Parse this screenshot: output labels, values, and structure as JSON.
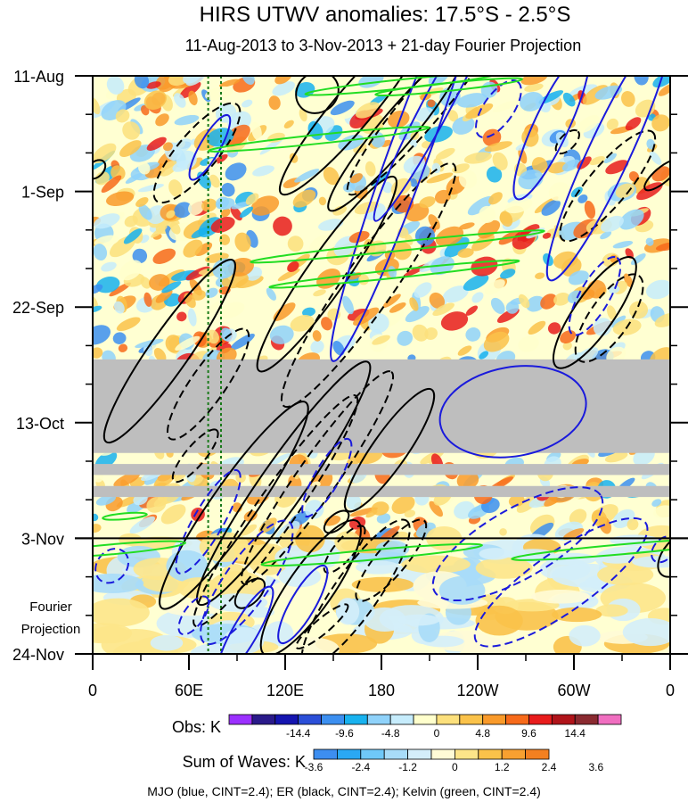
{
  "chart_data": {
    "type": "heatmap",
    "title": "HIRS UTWV anomalies: 17.5°S - 2.5°S",
    "subtitle": "11-Aug-2013 to 3-Nov-2013 + 21-day Fourier Projection",
    "xlabel": "",
    "ylabel": "",
    "x_ticks": [
      "0",
      "60E",
      "120E",
      "180",
      "120W",
      "60W",
      "0"
    ],
    "x_tick_values": [
      0,
      60,
      120,
      180,
      240,
      300,
      360
    ],
    "xlim": [
      0,
      360
    ],
    "y_ticks": [
      "11-Aug",
      "1-Sep",
      "22-Sep",
      "13-Oct",
      "3-Nov",
      "24-Nov"
    ],
    "y_tick_days": [
      0,
      21,
      42,
      63,
      84,
      105
    ],
    "ylim_days": [
      0,
      105
    ],
    "projection_start_day": 84,
    "projection_label": [
      "Fourier",
      "Projection"
    ],
    "missing_data_bands_days": [
      [
        51.5,
        68.5
      ],
      [
        70.5,
        72.5
      ],
      [
        74.5,
        76.5
      ]
    ],
    "reference_longitudes": [
      72,
      80
    ],
    "obs_colorbar": {
      "label": "Obs: K",
      "tick_labels": [
        "-14.4",
        "-9.6",
        "-4.8",
        "0",
        "4.8",
        "9.6",
        "14.4"
      ],
      "tick_values": [
        -14.4,
        -9.6,
        -4.8,
        0,
        4.8,
        9.6,
        14.4
      ],
      "colors": [
        "#9b30ff",
        "#2a1a8a",
        "#1515b0",
        "#2b4fd8",
        "#3c8ff0",
        "#18b2ef",
        "#8fd2fa",
        "#c6ecfc",
        "#ffffcc",
        "#fce07c",
        "#fac24a",
        "#f99a2a",
        "#f76a1a",
        "#e81c1c",
        "#b0141a",
        "#8a2a30",
        "#f06ec0"
      ]
    },
    "waves_colorbar": {
      "label": "Sum of Waves: K",
      "tick_labels": [
        "-3.6",
        "-2.4",
        "-1.2",
        "0",
        "1.2",
        "2.4",
        "3.6"
      ],
      "tick_values": [
        -3.6,
        -2.4,
        -1.2,
        0,
        1.2,
        2.4,
        3.6
      ],
      "colors": [
        "#3d8ef0",
        "#2aa8f4",
        "#6fc8f8",
        "#a8dcf8",
        "#d4eefa",
        "#fffbd6",
        "#fde589",
        "#fac24a",
        "#f8a030",
        "#f38020"
      ]
    },
    "legend": "MJO (blue, CINT=2.4); ER (black, CINT=2.4); Kelvin (green, CINT=2.4)",
    "contour_series": [
      {
        "name": "MJO",
        "color": "#1a1adc",
        "cint": 2.4
      },
      {
        "name": "ER",
        "color": "#000000",
        "cint": 2.4
      },
      {
        "name": "Kelvin",
        "color": "#22dd22",
        "cint": 2.4
      }
    ],
    "ellipses": [
      {
        "wave": "ER",
        "lon": 140,
        "day": 3,
        "rlon": 6,
        "rday": 4,
        "angle": -40,
        "dashed": false
      },
      {
        "wave": "ER",
        "lon": 65,
        "day": 14,
        "rlon": 17,
        "rday": 4,
        "angle": -50,
        "dashed": true
      },
      {
        "wave": "ER",
        "lon": 162,
        "day": 6,
        "rlon": 30,
        "rday": 4,
        "angle": -50,
        "dashed": false
      },
      {
        "wave": "ER",
        "lon": 207,
        "day": 5,
        "rlon": 32,
        "rday": 4,
        "angle": -50,
        "dashed": true
      },
      {
        "wave": "ER",
        "lon": 189,
        "day": 10,
        "rlon": 28,
        "rday": 3.5,
        "angle": -50,
        "dashed": false
      },
      {
        "wave": "ER",
        "lon": 2,
        "day": 17,
        "rlon": 3,
        "rday": 1.5,
        "angle": -45,
        "dashed": false
      },
      {
        "wave": "ER",
        "lon": 296,
        "day": 12,
        "rlon": 4,
        "rday": 1.5,
        "angle": -45,
        "dashed": true
      },
      {
        "wave": "ER",
        "lon": 321,
        "day": 20,
        "rlon": 19,
        "rday": 4,
        "angle": -50,
        "dashed": true
      },
      {
        "wave": "ER",
        "lon": 355,
        "day": 18,
        "rlon": 6,
        "rday": 1.5,
        "angle": -40,
        "dashed": false
      },
      {
        "wave": "ER",
        "lon": 146,
        "day": 36,
        "rlon": 32,
        "rday": 4,
        "angle": -55,
        "dashed": false
      },
      {
        "wave": "ER",
        "lon": 172,
        "day": 38,
        "rlon": 40,
        "rday": 5,
        "angle": -55,
        "dashed": true
      },
      {
        "wave": "ER",
        "lon": 313,
        "day": 43,
        "rlon": 18,
        "rday": 4,
        "angle": -55,
        "dashed": false
      },
      {
        "wave": "ER",
        "lon": 322,
        "day": 44,
        "rlon": 14,
        "rday": 4,
        "angle": -55,
        "dashed": true
      },
      {
        "wave": "ER",
        "lon": 48,
        "day": 50,
        "rlon": 30,
        "rday": 4,
        "angle": -55,
        "dashed": false
      },
      {
        "wave": "ER",
        "lon": 72,
        "day": 56,
        "rlon": 18,
        "rday": 3.5,
        "angle": -55,
        "dashed": true
      },
      {
        "wave": "ER",
        "lon": 119,
        "day": 74,
        "rlon": 40,
        "rday": 4.5,
        "angle": -55,
        "dashed": false
      },
      {
        "wave": "ER",
        "lon": 140,
        "day": 73,
        "rlon": 35,
        "rday": 4,
        "angle": -55,
        "dashed": true
      },
      {
        "wave": "ER",
        "lon": 88,
        "day": 78,
        "rlon": 34,
        "rday": 4.5,
        "angle": -55,
        "dashed": false
      },
      {
        "wave": "ER",
        "lon": 114,
        "day": 79,
        "rlon": 38,
        "rday": 4,
        "angle": -55,
        "dashed": true
      },
      {
        "wave": "ER",
        "lon": 185,
        "day": 68,
        "rlon": 20,
        "rday": 3.5,
        "angle": -55,
        "dashed": false
      },
      {
        "wave": "ER",
        "lon": 64,
        "day": 69,
        "rlon": 9,
        "rday": 2,
        "angle": -50,
        "dashed": true
      },
      {
        "wave": "ER",
        "lon": 152,
        "day": 81,
        "rlon": 4,
        "rday": 1.5,
        "angle": -40,
        "dashed": false
      },
      {
        "wave": "ER",
        "lon": 157,
        "day": 86,
        "rlon": 8,
        "rday": 2,
        "angle": -50,
        "dashed": true
      },
      {
        "wave": "ER",
        "lon": 186,
        "day": 88,
        "rlon": 14,
        "rday": 3,
        "angle": -50,
        "dashed": true
      },
      {
        "wave": "ER",
        "lon": 136,
        "day": 93,
        "rlon": 22,
        "rday": 4.5,
        "angle": -55,
        "dashed": false
      },
      {
        "wave": "ER",
        "lon": 164,
        "day": 94,
        "rlon": 24,
        "rday": 4.5,
        "angle": -55,
        "dashed": true
      },
      {
        "wave": "ER",
        "lon": 143,
        "day": 100,
        "rlon": 9,
        "rday": 1.5,
        "angle": -40,
        "dashed": true
      },
      {
        "wave": "ER",
        "lon": 98,
        "day": 94,
        "rlon": 5,
        "rday": 2,
        "angle": -45,
        "dashed": false
      },
      {
        "wave": "ER",
        "lon": 365,
        "day": 87,
        "rlon": 7,
        "rday": 3,
        "angle": -50,
        "dashed": false
      },
      {
        "wave": "MJO",
        "lon": 215,
        "day": 5,
        "rlon": 36,
        "rday": 2.8,
        "angle": -62,
        "dashed": false
      },
      {
        "wave": "MJO",
        "lon": 197,
        "day": 14,
        "rlon": 60,
        "rday": 4,
        "angle": -70,
        "dashed": false
      },
      {
        "wave": "MJO",
        "lon": 253,
        "day": 6,
        "rlon": 9,
        "rday": 3,
        "angle": -55,
        "dashed": true
      },
      {
        "wave": "MJO",
        "lon": 286,
        "day": 9,
        "rlon": 22,
        "rday": 3.5,
        "angle": -65,
        "dashed": false
      },
      {
        "wave": "MJO",
        "lon": 322,
        "day": 14,
        "rlon": 38,
        "rday": 4.2,
        "angle": -65,
        "dashed": false
      },
      {
        "wave": "MJO",
        "lon": 313,
        "day": 40,
        "rlon": 12,
        "rday": 3,
        "angle": -60,
        "dashed": true
      },
      {
        "wave": "MJO",
        "lon": 73,
        "day": 13,
        "rlon": 10,
        "rday": 2,
        "angle": -60,
        "dashed": false
      },
      {
        "wave": "MJO",
        "lon": 262,
        "day": 61,
        "rlon": 20,
        "rday": 9,
        "angle": -10,
        "dashed": false
      },
      {
        "wave": "MJO",
        "lon": 72,
        "day": 81,
        "rlon": 16,
        "rday": 3,
        "angle": -60,
        "dashed": true
      },
      {
        "wave": "MJO",
        "lon": 146,
        "day": 73,
        "rlon": 12,
        "rday": 2.5,
        "angle": -60,
        "dashed": true
      },
      {
        "wave": "MJO",
        "lon": 265,
        "day": 85,
        "rlon": 26,
        "rday": 7,
        "angle": -30,
        "dashed": true
      },
      {
        "wave": "MJO",
        "lon": 292,
        "day": 92,
        "rlon": 28,
        "rday": 6,
        "angle": -35,
        "dashed": true
      },
      {
        "wave": "MJO",
        "lon": 96,
        "day": 92,
        "rlon": 20,
        "rday": 4.5,
        "angle": -55,
        "dashed": true
      },
      {
        "wave": "MJO",
        "lon": 63,
        "day": 98,
        "rlon": 6,
        "rday": 2,
        "angle": -55,
        "dashed": true
      },
      {
        "wave": "MJO",
        "lon": 131,
        "day": 96,
        "rlon": 12,
        "rday": 2.5,
        "angle": -60,
        "dashed": false
      },
      {
        "wave": "MJO",
        "lon": 12,
        "day": 89,
        "rlon": 5,
        "rday": 3,
        "angle": -50,
        "dashed": true
      },
      {
        "wave": "MJO",
        "lon": 356,
        "day": 86,
        "rlon": 4,
        "rday": 2,
        "angle": -50,
        "dashed": true
      },
      {
        "wave": "MJO",
        "lon": 95,
        "day": 101,
        "rlon": 14,
        "rday": 2.5,
        "angle": -60,
        "dashed": false
      },
      {
        "wave": "Kelvin",
        "lon": 192,
        "day": 1.5,
        "rlon": 26,
        "rday": 0.9,
        "angle": -6,
        "dashed": false
      },
      {
        "wave": "Kelvin",
        "lon": 222,
        "day": 2,
        "rlon": 20,
        "rday": 0.8,
        "angle": -6,
        "dashed": false
      },
      {
        "wave": "Kelvin",
        "lon": 141,
        "day": 11.5,
        "rlon": 30,
        "rday": 0.9,
        "angle": -6,
        "dashed": false
      },
      {
        "wave": "Kelvin",
        "lon": 190,
        "day": 31,
        "rlon": 40,
        "rday": 0.9,
        "angle": -6,
        "dashed": false
      },
      {
        "wave": "Kelvin",
        "lon": 188,
        "day": 36,
        "rlon": 34,
        "rday": 0.8,
        "angle": -6,
        "dashed": false
      },
      {
        "wave": "Kelvin",
        "lon": 174,
        "day": 87,
        "rlon": 30,
        "rday": 1,
        "angle": -5,
        "dashed": false
      },
      {
        "wave": "Kelvin",
        "lon": 330,
        "day": 86,
        "rlon": 30,
        "rday": 1,
        "angle": -5,
        "dashed": false
      },
      {
        "wave": "Kelvin",
        "lon": 20,
        "day": 80,
        "rlon": 6,
        "rday": 0.6,
        "angle": -5,
        "dashed": false
      },
      {
        "wave": "Kelvin",
        "lon": 12,
        "day": 86,
        "rlon": 20,
        "rday": 1,
        "angle": -5,
        "dashed": false
      }
    ]
  }
}
